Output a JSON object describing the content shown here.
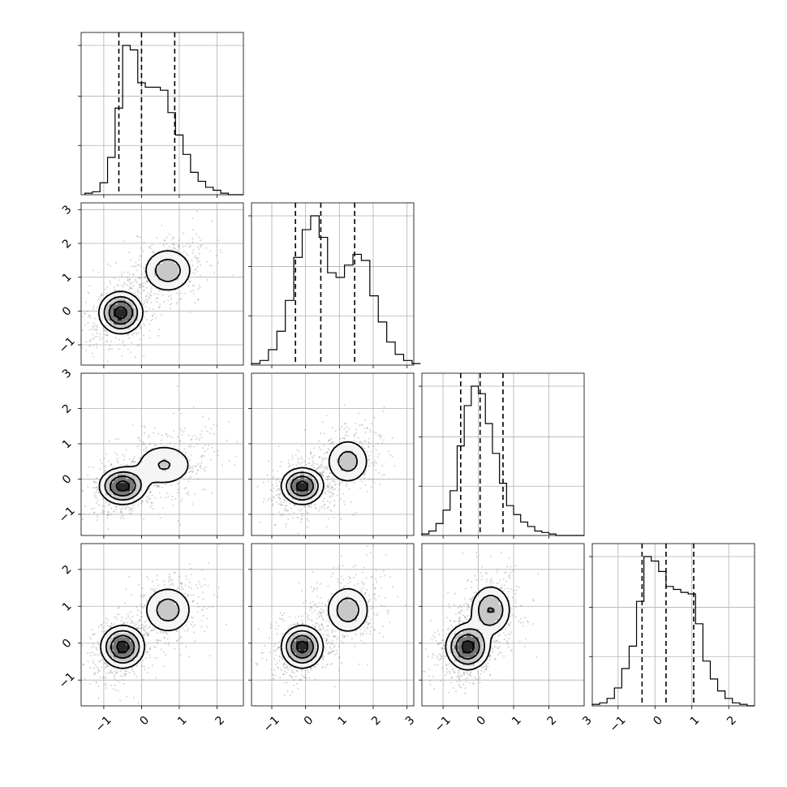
{
  "chart_data": {
    "type": "corner",
    "title": "",
    "parameters": [
      {
        "name": "",
        "range": [
          -1.6,
          2.7
        ],
        "ticks": [
          -1,
          0,
          1,
          2
        ],
        "quantiles": [
          -0.6,
          0.0,
          0.88
        ]
      },
      {
        "name": "",
        "range": [
          -1.6,
          3.2
        ],
        "ticks": [
          -1,
          0,
          1,
          2,
          3
        ],
        "quantiles": [
          -0.3,
          0.45,
          1.45
        ]
      },
      {
        "name": "",
        "range": [
          -1.6,
          3.0
        ],
        "ticks": [
          -1,
          0,
          1,
          2,
          3
        ],
        "quantiles": [
          -0.5,
          0.05,
          0.7
        ]
      },
      {
        "name": "",
        "range": [
          -1.7,
          2.7
        ],
        "ticks": [
          -1,
          0,
          1,
          2
        ],
        "quantiles": [
          -0.35,
          0.3,
          1.05
        ]
      }
    ],
    "diagonal_histograms": [
      {
        "param": 0,
        "bin_width": 0.2,
        "bin_start": -1.5,
        "counts": [
          1,
          2,
          8,
          25,
          58,
          100,
          97,
          75,
          72,
          72,
          70,
          55,
          40,
          27,
          15,
          9,
          5,
          3,
          1,
          0,
          0
        ]
      },
      {
        "param": 1,
        "bin_width": 0.25,
        "bin_start": -1.6,
        "counts": [
          1,
          3,
          10,
          22,
          42,
          70,
          88,
          97,
          83,
          60,
          57,
          65,
          72,
          68,
          45,
          28,
          15,
          7,
          3,
          1
        ]
      },
      {
        "param": 2,
        "bin_width": 0.2,
        "bin_start": -1.6,
        "counts": [
          1,
          3,
          8,
          17,
          30,
          60,
          87,
          100,
          95,
          75,
          55,
          35,
          20,
          14,
          9,
          6,
          3,
          2,
          1,
          0,
          0,
          0,
          0
        ]
      },
      {
        "param": 3,
        "bin_width": 0.2,
        "bin_start": -1.7,
        "counts": [
          1,
          2,
          5,
          12,
          25,
          40,
          70,
          100,
          97,
          90,
          80,
          78,
          76,
          75,
          55,
          30,
          18,
          10,
          5,
          2,
          1,
          0
        ]
      }
    ],
    "pair_density": [
      {
        "row": 1,
        "col": 0,
        "modes": [
          {
            "x": -0.55,
            "y": -0.05,
            "sx": 0.28,
            "sy": 0.3,
            "w": 0.6
          },
          {
            "x": 0.7,
            "y": 1.2,
            "sx": 0.35,
            "sy": 0.35,
            "w": 0.4
          }
        ]
      },
      {
        "row": 2,
        "col": 0,
        "modes": [
          {
            "x": -0.5,
            "y": -0.2,
            "sx": 0.3,
            "sy": 0.25,
            "w": 0.6
          },
          {
            "x": 0.6,
            "y": 0.4,
            "sx": 0.45,
            "sy": 0.35,
            "w": 0.4
          }
        ]
      },
      {
        "row": 2,
        "col": 1,
        "modes": [
          {
            "x": -0.1,
            "y": -0.2,
            "sx": 0.3,
            "sy": 0.25,
            "w": 0.6
          },
          {
            "x": 1.25,
            "y": 0.5,
            "sx": 0.35,
            "sy": 0.35,
            "w": 0.4
          }
        ]
      },
      {
        "row": 3,
        "col": 0,
        "modes": [
          {
            "x": -0.5,
            "y": -0.1,
            "sx": 0.28,
            "sy": 0.28,
            "w": 0.6
          },
          {
            "x": 0.7,
            "y": 0.9,
            "sx": 0.35,
            "sy": 0.35,
            "w": 0.4
          }
        ]
      },
      {
        "row": 3,
        "col": 1,
        "modes": [
          {
            "x": -0.1,
            "y": -0.1,
            "sx": 0.3,
            "sy": 0.28,
            "w": 0.6
          },
          {
            "x": 1.25,
            "y": 0.9,
            "sx": 0.35,
            "sy": 0.35,
            "w": 0.4
          }
        ]
      },
      {
        "row": 3,
        "col": 2,
        "modes": [
          {
            "x": -0.3,
            "y": -0.1,
            "sx": 0.3,
            "sy": 0.3,
            "w": 0.6
          },
          {
            "x": 0.35,
            "y": 0.9,
            "sx": 0.3,
            "sy": 0.35,
            "w": 0.4
          }
        ]
      }
    ],
    "grid": true,
    "legend": "none",
    "colors": {
      "points": "#808080",
      "density_dark": "#000000",
      "contour": "#000000"
    }
  }
}
